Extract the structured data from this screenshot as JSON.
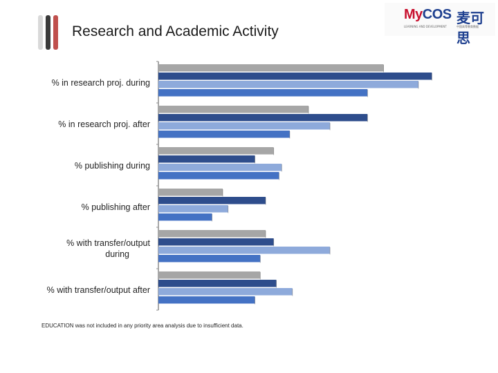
{
  "title": "Research and Academic Activity",
  "logo": {
    "brand_my": "My",
    "brand_cos": "COS",
    "chinese": "麦可思",
    "sub_en": "LEARNING AND DEVELOPMENT",
    "sub_cn": "中国高等教育数据"
  },
  "footnote": "EDUCATION was not included in any priority area analysis due to insufficient data.",
  "colors": {
    "deco": [
      "#d9d9d9",
      "#3a3a3a",
      "#c0504d"
    ],
    "series": [
      "#a6a6a6",
      "#2e4d8c",
      "#8eaadb",
      "#4472c4"
    ]
  },
  "chart_data": {
    "type": "bar",
    "orientation": "horizontal",
    "categories": [
      "% in research proj. during",
      "% in research proj. after",
      "% publishing during",
      "% publishing after",
      "% with transfer/output during",
      "% with transfer/output after"
    ],
    "series": [
      {
        "values": [
          84,
          56,
          43,
          24,
          40,
          38
        ]
      },
      {
        "values": [
          102,
          78,
          36,
          40,
          43,
          44
        ]
      },
      {
        "values": [
          97,
          64,
          46,
          26,
          64,
          50
        ]
      },
      {
        "values": [
          78,
          49,
          45,
          20,
          38,
          36
        ]
      }
    ],
    "xlim": [
      0,
      105
    ],
    "gridlines": false,
    "legend": "none"
  }
}
